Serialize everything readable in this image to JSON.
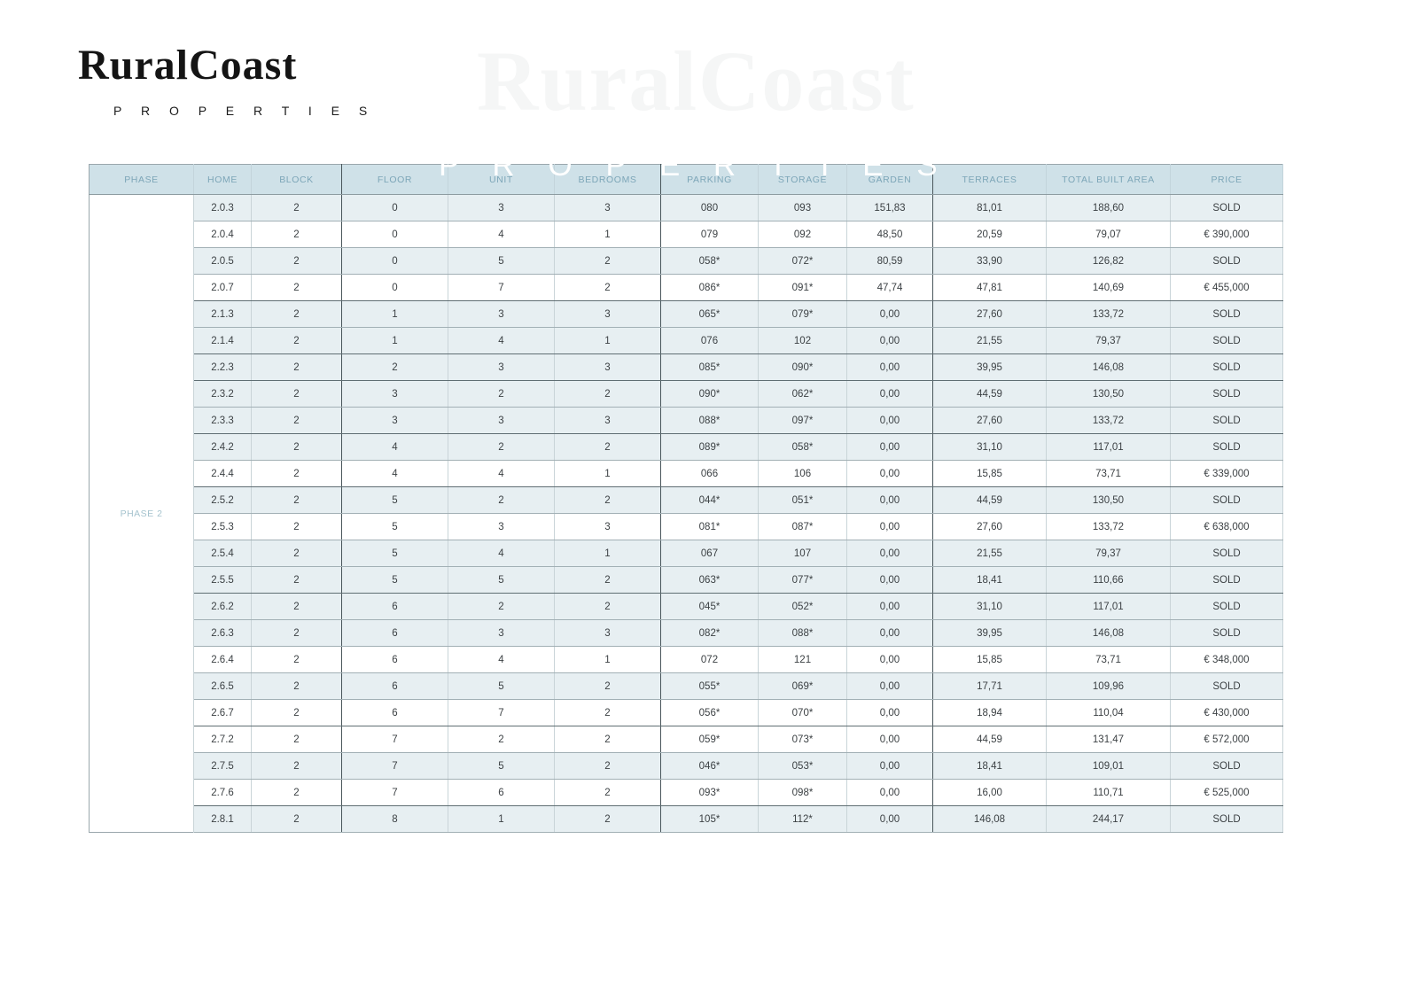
{
  "brand": {
    "name": "RuralCoast",
    "tagline": "P R O P E R T I E S"
  },
  "watermark": {
    "line1": "RuralCoast",
    "line2": "P R O P E R T I E S"
  },
  "colors": {
    "header_bg": "#cfe1e8",
    "header_text": "#7da6b8",
    "sold_row_bg": "#e7eff2",
    "available_row_bg": "#ffffff",
    "phase_label_text": "#a5c3ce",
    "cell_text": "#3c4144"
  },
  "table": {
    "phase_label": "PHASE 2",
    "columns": [
      "PHASE",
      "HOME",
      "BLOCK",
      "FLOOR",
      "UNIT",
      "BEDROOMS",
      "PARKING",
      "STORAGE",
      "GARDEN",
      "TERRACES",
      "TOTAL BUILT AREA",
      "PRICE"
    ],
    "rows": [
      {
        "home": "2.0.3",
        "block": "2",
        "floor": "0",
        "unit": "3",
        "bedrooms": "3",
        "parking": "080",
        "storage": "093",
        "garden": "151,83",
        "terraces": "81,01",
        "total_built_area": "188,60",
        "price": "SOLD"
      },
      {
        "home": "2.0.4",
        "block": "2",
        "floor": "0",
        "unit": "4",
        "bedrooms": "1",
        "parking": "079",
        "storage": "092",
        "garden": "48,50",
        "terraces": "20,59",
        "total_built_area": "79,07",
        "price": "€ 390,000"
      },
      {
        "home": "2.0.5",
        "block": "2",
        "floor": "0",
        "unit": "5",
        "bedrooms": "2",
        "parking": "058*",
        "storage": "072*",
        "garden": "80,59",
        "terraces": "33,90",
        "total_built_area": "126,82",
        "price": "SOLD"
      },
      {
        "home": "2.0.7",
        "block": "2",
        "floor": "0",
        "unit": "7",
        "bedrooms": "2",
        "parking": "086*",
        "storage": "091*",
        "garden": "47,74",
        "terraces": "47,81",
        "total_built_area": "140,69",
        "price": "€ 455,000"
      },
      {
        "home": "2.1.3",
        "block": "2",
        "floor": "1",
        "unit": "3",
        "bedrooms": "3",
        "parking": "065*",
        "storage": "079*",
        "garden": "0,00",
        "terraces": "27,60",
        "total_built_area": "133,72",
        "price": "SOLD"
      },
      {
        "home": "2.1.4",
        "block": "2",
        "floor": "1",
        "unit": "4",
        "bedrooms": "1",
        "parking": "076",
        "storage": "102",
        "garden": "0,00",
        "terraces": "21,55",
        "total_built_area": "79,37",
        "price": "SOLD"
      },
      {
        "home": "2.2.3",
        "block": "2",
        "floor": "2",
        "unit": "3",
        "bedrooms": "3",
        "parking": "085*",
        "storage": "090*",
        "garden": "0,00",
        "terraces": "39,95",
        "total_built_area": "146,08",
        "price": "SOLD"
      },
      {
        "home": "2.3.2",
        "block": "2",
        "floor": "3",
        "unit": "2",
        "bedrooms": "2",
        "parking": "090*",
        "storage": "062*",
        "garden": "0,00",
        "terraces": "44,59",
        "total_built_area": "130,50",
        "price": "SOLD"
      },
      {
        "home": "2.3.3",
        "block": "2",
        "floor": "3",
        "unit": "3",
        "bedrooms": "3",
        "parking": "088*",
        "storage": "097*",
        "garden": "0,00",
        "terraces": "27,60",
        "total_built_area": "133,72",
        "price": "SOLD"
      },
      {
        "home": "2.4.2",
        "block": "2",
        "floor": "4",
        "unit": "2",
        "bedrooms": "2",
        "parking": "089*",
        "storage": "058*",
        "garden": "0,00",
        "terraces": "31,10",
        "total_built_area": "117,01",
        "price": "SOLD"
      },
      {
        "home": "2.4.4",
        "block": "2",
        "floor": "4",
        "unit": "4",
        "bedrooms": "1",
        "parking": "066",
        "storage": "106",
        "garden": "0,00",
        "terraces": "15,85",
        "total_built_area": "73,71",
        "price": "€ 339,000"
      },
      {
        "home": "2.5.2",
        "block": "2",
        "floor": "5",
        "unit": "2",
        "bedrooms": "2",
        "parking": "044*",
        "storage": "051*",
        "garden": "0,00",
        "terraces": "44,59",
        "total_built_area": "130,50",
        "price": "SOLD"
      },
      {
        "home": "2.5.3",
        "block": "2",
        "floor": "5",
        "unit": "3",
        "bedrooms": "3",
        "parking": "081*",
        "storage": "087*",
        "garden": "0,00",
        "terraces": "27,60",
        "total_built_area": "133,72",
        "price": "€ 638,000"
      },
      {
        "home": "2.5.4",
        "block": "2",
        "floor": "5",
        "unit": "4",
        "bedrooms": "1",
        "parking": "067",
        "storage": "107",
        "garden": "0,00",
        "terraces": "21,55",
        "total_built_area": "79,37",
        "price": "SOLD"
      },
      {
        "home": "2.5.5",
        "block": "2",
        "floor": "5",
        "unit": "5",
        "bedrooms": "2",
        "parking": "063*",
        "storage": "077*",
        "garden": "0,00",
        "terraces": "18,41",
        "total_built_area": "110,66",
        "price": "SOLD"
      },
      {
        "home": "2.6.2",
        "block": "2",
        "floor": "6",
        "unit": "2",
        "bedrooms": "2",
        "parking": "045*",
        "storage": "052*",
        "garden": "0,00",
        "terraces": "31,10",
        "total_built_area": "117,01",
        "price": "SOLD"
      },
      {
        "home": "2.6.3",
        "block": "2",
        "floor": "6",
        "unit": "3",
        "bedrooms": "3",
        "parking": "082*",
        "storage": "088*",
        "garden": "0,00",
        "terraces": "39,95",
        "total_built_area": "146,08",
        "price": "SOLD"
      },
      {
        "home": "2.6.4",
        "block": "2",
        "floor": "6",
        "unit": "4",
        "bedrooms": "1",
        "parking": "072",
        "storage": "121",
        "garden": "0,00",
        "terraces": "15,85",
        "total_built_area": "73,71",
        "price": "€ 348,000"
      },
      {
        "home": "2.6.5",
        "block": "2",
        "floor": "6",
        "unit": "5",
        "bedrooms": "2",
        "parking": "055*",
        "storage": "069*",
        "garden": "0,00",
        "terraces": "17,71",
        "total_built_area": "109,96",
        "price": "SOLD"
      },
      {
        "home": "2.6.7",
        "block": "2",
        "floor": "6",
        "unit": "7",
        "bedrooms": "2",
        "parking": "056*",
        "storage": "070*",
        "garden": "0,00",
        "terraces": "18,94",
        "total_built_area": "110,04",
        "price": "€ 430,000"
      },
      {
        "home": "2.7.2",
        "block": "2",
        "floor": "7",
        "unit": "2",
        "bedrooms": "2",
        "parking": "059*",
        "storage": "073*",
        "garden": "0,00",
        "terraces": "44,59",
        "total_built_area": "131,47",
        "price": "€ 572,000"
      },
      {
        "home": "2.7.5",
        "block": "2",
        "floor": "7",
        "unit": "5",
        "bedrooms": "2",
        "parking": "046*",
        "storage": "053*",
        "garden": "0,00",
        "terraces": "18,41",
        "total_built_area": "109,01",
        "price": "SOLD"
      },
      {
        "home": "2.7.6",
        "block": "2",
        "floor": "7",
        "unit": "6",
        "bedrooms": "2",
        "parking": "093*",
        "storage": "098*",
        "garden": "0,00",
        "terraces": "16,00",
        "total_built_area": "110,71",
        "price": "€ 525,000"
      },
      {
        "home": "2.8.1",
        "block": "2",
        "floor": "8",
        "unit": "1",
        "bedrooms": "2",
        "parking": "105*",
        "storage": "112*",
        "garden": "0,00",
        "terraces": "146,08",
        "total_built_area": "244,17",
        "price": "SOLD"
      }
    ]
  }
}
